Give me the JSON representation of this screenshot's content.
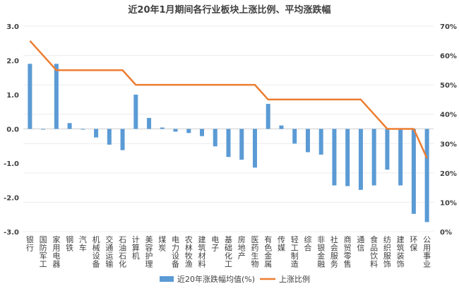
{
  "chart_data": {
    "type": "bar+line",
    "title": "近20年1月期间各行业板块上涨比例、平均涨跌幅",
    "categories": [
      "银行",
      "国防军工",
      "家用电器",
      "钢铁",
      "汽车",
      "机械设备",
      "交通运输",
      "石油石化",
      "计算机",
      "美容护理",
      "煤炭",
      "电力设备",
      "农林牧渔",
      "建筑材料",
      "电子",
      "基础化工",
      "房地产",
      "医药生物",
      "有色金属",
      "传媒",
      "轻工制造",
      "综合",
      "非银金融",
      "社会服务",
      "商贸零售",
      "通信",
      "食品饮料",
      "纺织服饰",
      "建筑装饰",
      "环保",
      "公用事业"
    ],
    "series": [
      {
        "name": "近20年涨跌幅均值(%)",
        "type": "bar",
        "axis": "left",
        "color": "#5b9bd5",
        "values": [
          1.9,
          -0.02,
          1.9,
          0.17,
          -0.02,
          -0.25,
          -0.46,
          -0.62,
          1.0,
          0.32,
          0.04,
          -0.08,
          -0.12,
          -0.21,
          -0.51,
          -0.82,
          -0.9,
          -1.13,
          0.73,
          0.1,
          -0.43,
          -0.68,
          -0.75,
          -1.65,
          -1.67,
          -1.78,
          -1.65,
          -1.19,
          -1.65,
          -2.48,
          -2.72
        ]
      },
      {
        "name": "上涨比例",
        "type": "line",
        "axis": "right",
        "color": "#ed7d31",
        "values": [
          65,
          60,
          55,
          55,
          55,
          55,
          55,
          55,
          50,
          50,
          50,
          50,
          50,
          50,
          50,
          50,
          50,
          50,
          45,
          45,
          45,
          45,
          45,
          45,
          45,
          45,
          40,
          35,
          35,
          35,
          25
        ]
      }
    ],
    "left_axis": {
      "range": [
        -3.0,
        3.0
      ],
      "ticks": [
        "3.0",
        "2.0",
        "1.0",
        "0.0",
        "-1.0",
        "-2.0",
        "-3.0"
      ]
    },
    "right_axis": {
      "range": [
        0,
        70
      ],
      "ticks": [
        "70%",
        "60%",
        "50%",
        "40%",
        "30%",
        "20%",
        "10%",
        "0%"
      ]
    },
    "grid": true,
    "legend": "bottom"
  }
}
